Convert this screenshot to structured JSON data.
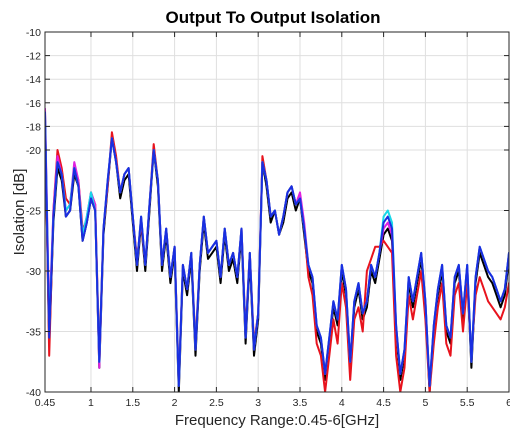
{
  "chart_data": {
    "type": "line",
    "title": "Output To Output Isolation",
    "xlabel": "Frequency Range:0.45-6[GHz]",
    "ylabel": "Isolation [dB]",
    "xlim": [
      0.45,
      6
    ],
    "ylim": [
      -40,
      -10
    ],
    "xticks": [
      0.45,
      1,
      1.5,
      2,
      2.5,
      3,
      3.5,
      4,
      4.5,
      5,
      5.5,
      6
    ],
    "xtick_labels": [
      "0.45",
      "1",
      "1.5",
      "2",
      "2.5",
      "3",
      "3.5",
      "4",
      "4.5",
      "5",
      "5.5",
      "6"
    ],
    "yticks": [
      -40,
      -35,
      -30,
      -25,
      -20,
      -18,
      -16,
      -14,
      -12,
      -10
    ],
    "ytick_labels": [
      "-40",
      "-35",
      "-30",
      "-25",
      "-20",
      "-18",
      "-16",
      "-14",
      "-12",
      "-10"
    ],
    "grid": true,
    "x": [
      0.45,
      0.5,
      0.55,
      0.6,
      0.65,
      0.7,
      0.75,
      0.8,
      0.85,
      0.9,
      0.95,
      1.0,
      1.05,
      1.1,
      1.15,
      1.2,
      1.25,
      1.3,
      1.35,
      1.4,
      1.45,
      1.5,
      1.55,
      1.6,
      1.65,
      1.7,
      1.75,
      1.8,
      1.85,
      1.9,
      1.95,
      2.0,
      2.05,
      2.1,
      2.15,
      2.2,
      2.25,
      2.3,
      2.35,
      2.4,
      2.45,
      2.5,
      2.55,
      2.6,
      2.65,
      2.7,
      2.75,
      2.8,
      2.85,
      2.9,
      2.95,
      3.0,
      3.05,
      3.1,
      3.15,
      3.2,
      3.25,
      3.3,
      3.35,
      3.4,
      3.45,
      3.5,
      3.55,
      3.6,
      3.65,
      3.7,
      3.75,
      3.8,
      3.85,
      3.9,
      3.95,
      4.0,
      4.05,
      4.1,
      4.15,
      4.2,
      4.25,
      4.3,
      4.35,
      4.4,
      4.45,
      4.5,
      4.55,
      4.6,
      4.65,
      4.7,
      4.75,
      4.8,
      4.85,
      4.9,
      4.95,
      5.0,
      5.05,
      5.1,
      5.15,
      5.2,
      5.25,
      5.3,
      5.35,
      5.4,
      5.45,
      5.5,
      5.55,
      5.6,
      5.65,
      5.7,
      5.75,
      5.8,
      5.85,
      5.9,
      5.95,
      6.0
    ],
    "series": [
      {
        "color": "#000000",
        "values": [
          -17.5,
          -36,
          -26,
          -21.5,
          -22.5,
          -25.5,
          -25,
          -22,
          -23,
          -27.5,
          -26,
          -24,
          -25,
          -38,
          -27,
          -23,
          -19,
          -21,
          -24,
          -22.5,
          -22,
          -26,
          -30,
          -26,
          -30,
          -25,
          -20,
          -23,
          -30,
          -27,
          -31,
          -28.5,
          -40,
          -30,
          -32,
          -29,
          -37,
          -30,
          -26,
          -29,
          -28.5,
          -28,
          -31,
          -27,
          -30,
          -29,
          -31,
          -27,
          -36,
          -29,
          -37,
          -34,
          -21,
          -23,
          -26,
          -25,
          -27,
          -26,
          -24,
          -23.5,
          -25,
          -24,
          -27,
          -30,
          -31,
          -35,
          -36,
          -39,
          -36,
          -33,
          -34.5,
          -30,
          -32,
          -38,
          -33,
          -31.5,
          -34,
          -33,
          -30,
          -31,
          -29,
          -27,
          -26.5,
          -27.5,
          -35,
          -39,
          -37,
          -31,
          -33,
          -31,
          -29,
          -33,
          -40,
          -35,
          -32,
          -30,
          -35,
          -36,
          -31,
          -30,
          -34,
          -30,
          -38,
          -31,
          -28.5,
          -29.5,
          -30.5,
          -31,
          -32,
          -33,
          -32,
          -29
        ]
      },
      {
        "color": "#e8131d",
        "values": [
          -17,
          -37,
          -25,
          -20,
          -21.5,
          -24,
          -24.5,
          -21.5,
          -22.5,
          -26.5,
          -26,
          -23.5,
          -24.5,
          -37,
          -26.5,
          -23,
          -18.5,
          -20.5,
          -23.5,
          -22,
          -21.5,
          -25.5,
          -29,
          -26,
          -29.5,
          -24.5,
          -19.5,
          -22.5,
          -29.5,
          -26.5,
          -30.5,
          -28,
          -39,
          -29.5,
          -31.5,
          -28.5,
          -36,
          -29.5,
          -25.5,
          -28.5,
          -28,
          -27.5,
          -30.5,
          -26.5,
          -29.5,
          -28.5,
          -30.5,
          -26.5,
          -35,
          -28.5,
          -36,
          -33.5,
          -20.5,
          -22.5,
          -25.5,
          -25,
          -27,
          -25.5,
          -23.5,
          -23,
          -24.5,
          -24,
          -26.5,
          -30.5,
          -32,
          -36,
          -37,
          -40,
          -37,
          -34,
          -36,
          -31,
          -33,
          -39,
          -34,
          -33,
          -35,
          -30,
          -29,
          -28,
          -28,
          -27.5,
          -28,
          -28.5,
          -37,
          -40,
          -38,
          -32,
          -34,
          -32,
          -30,
          -34,
          -40,
          -36,
          -33,
          -31,
          -36,
          -37,
          -32,
          -31,
          -35,
          -31,
          -37,
          -32,
          -30.5,
          -31.5,
          -32.5,
          -33,
          -33.5,
          -34,
          -33,
          -31
        ]
      },
      {
        "color": "#e020e0",
        "values": [
          -16.5,
          -34,
          -25,
          -20.5,
          -22,
          -25,
          -24.5,
          -21,
          -22.5,
          -27,
          -25.5,
          -23.5,
          -24.5,
          -38,
          -26.5,
          -22.5,
          -19,
          -21,
          -23.5,
          -22,
          -21.5,
          -25.5,
          -29.5,
          -25.5,
          -29.5,
          -24.5,
          -20,
          -22.5,
          -29.5,
          -26.5,
          -30.5,
          -28,
          -39.5,
          -29.5,
          -31.5,
          -28.5,
          -36.5,
          -29.5,
          -25.5,
          -28.5,
          -28,
          -27.5,
          -30.5,
          -26.5,
          -29.5,
          -28.5,
          -30.5,
          -26.5,
          -35.5,
          -28.5,
          -36.5,
          -33.5,
          -21,
          -22.5,
          -25.5,
          -25,
          -27,
          -25.5,
          -23.5,
          -23,
          -24.5,
          -23.5,
          -26,
          -29.5,
          -30.5,
          -34.5,
          -35.5,
          -38.5,
          -35.5,
          -32.5,
          -34,
          -29.5,
          -31.5,
          -37.5,
          -32.5,
          -31,
          -33.5,
          -32.5,
          -29.5,
          -30.5,
          -28.5,
          -26.5,
          -26,
          -27,
          -34.5,
          -38.5,
          -36.5,
          -30.5,
          -32.5,
          -30.5,
          -28.5,
          -32.5,
          -39.5,
          -34.5,
          -31.5,
          -29.5,
          -34.5,
          -35.5,
          -30.5,
          -29.5,
          -33.5,
          -29.5,
          -37.5,
          -30.5,
          -28,
          -29,
          -30,
          -30.5,
          -31.5,
          -32.5,
          -31.5,
          -28.5
        ]
      },
      {
        "color": "#18d8e8",
        "values": [
          -17,
          -35,
          -25.5,
          -21,
          -22,
          -25,
          -24.5,
          -21.5,
          -23,
          -27,
          -25.5,
          -23.5,
          -25,
          -37.5,
          -26.5,
          -22.5,
          -19,
          -21,
          -23.5,
          -22,
          -21.5,
          -25.5,
          -29.5,
          -25.5,
          -29.5,
          -24.5,
          -20,
          -22.5,
          -29.5,
          -26.5,
          -30.5,
          -28,
          -39.5,
          -29.5,
          -31.5,
          -28.5,
          -36.5,
          -29.5,
          -25.5,
          -28.5,
          -28,
          -27.5,
          -30.5,
          -26.5,
          -29.5,
          -28.5,
          -30.5,
          -26.5,
          -35.5,
          -28.5,
          -36.5,
          -33.5,
          -21,
          -22.5,
          -25.5,
          -25,
          -27,
          -25.5,
          -23.5,
          -23,
          -24.5,
          -24,
          -26.5,
          -29.5,
          -30.5,
          -34.5,
          -35.5,
          -38.5,
          -35.5,
          -32.5,
          -34,
          -29.5,
          -31.5,
          -37.5,
          -32.5,
          -31,
          -33.5,
          -32.5,
          -29.5,
          -30.5,
          -28.5,
          -25.5,
          -25,
          -26,
          -34.5,
          -38.5,
          -36.5,
          -30.5,
          -32.5,
          -30.5,
          -28.5,
          -32.5,
          -39.5,
          -34.5,
          -31.5,
          -29.5,
          -34.5,
          -35.5,
          -30.5,
          -29.5,
          -33.5,
          -29.5,
          -37.5,
          -30.5,
          -28,
          -29,
          -30,
          -30.5,
          -31.5,
          -32.5,
          -31.5,
          -28.5
        ]
      },
      {
        "color": "#1a2ee0",
        "values": [
          -16.8,
          -35.5,
          -25.5,
          -21,
          -22,
          -25.5,
          -25,
          -21.5,
          -23,
          -27.5,
          -26,
          -24,
          -25,
          -37.5,
          -26.5,
          -22.5,
          -19,
          -21,
          -23.5,
          -22,
          -21.5,
          -25.5,
          -29.5,
          -25.5,
          -29.5,
          -24.5,
          -20,
          -22.5,
          -29.5,
          -26.5,
          -30.5,
          -28,
          -39.5,
          -29.5,
          -31.5,
          -28.5,
          -36.5,
          -29.5,
          -25.5,
          -28.5,
          -28,
          -27.5,
          -30.5,
          -26.5,
          -29.5,
          -28.5,
          -30.5,
          -26.5,
          -35.5,
          -28.5,
          -36.5,
          -33.5,
          -21,
          -22.5,
          -25.5,
          -25,
          -27,
          -25.5,
          -23.5,
          -23,
          -24.5,
          -24,
          -26.5,
          -29.5,
          -30.5,
          -34.5,
          -35.5,
          -38.5,
          -35.5,
          -32.5,
          -34,
          -29.5,
          -31.5,
          -37.5,
          -32.5,
          -31,
          -33.5,
          -32.5,
          -29.5,
          -30.5,
          -28.5,
          -26,
          -25.5,
          -26.5,
          -34.5,
          -38.5,
          -36.5,
          -30.5,
          -32.5,
          -30.5,
          -28.5,
          -32.5,
          -39.5,
          -34.5,
          -31.5,
          -29.5,
          -34.5,
          -35.5,
          -30.5,
          -29.5,
          -33.5,
          -29.5,
          -37.5,
          -30.5,
          -28,
          -29,
          -30,
          -30.5,
          -31.5,
          -32.5,
          -31.5,
          -28.5
        ]
      }
    ]
  }
}
